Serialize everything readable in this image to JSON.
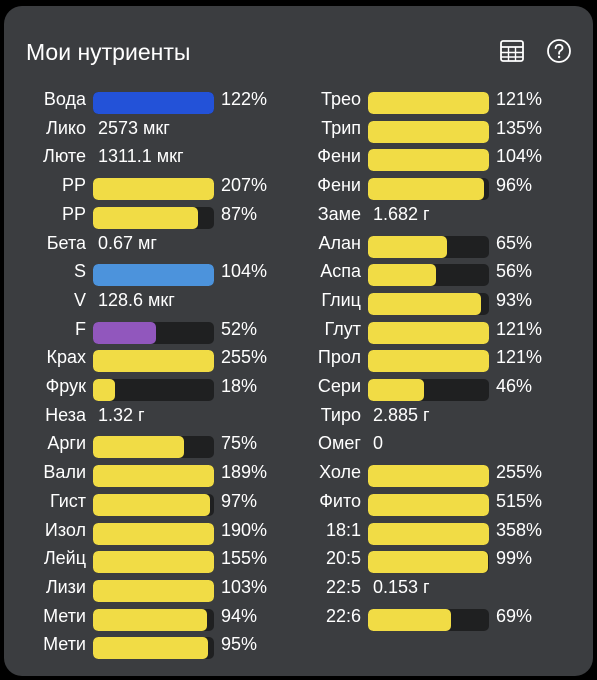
{
  "header": {
    "title": "Мои нутриенты",
    "table_icon": "table-icon",
    "help_icon": "help-circle-icon"
  },
  "colors": {
    "card_bg": "#3b3d40",
    "track": "#1f2021",
    "yellow": "#f1dc45",
    "blue": "#2352d8",
    "light_blue": "#4c93dc",
    "purple": "#9157bd"
  },
  "left": [
    {
      "label": "Вода",
      "kind": "bar",
      "percent": 122,
      "text": "122%",
      "color": "#2352d8"
    },
    {
      "label": "Лико",
      "kind": "value",
      "text": "2573 мкг"
    },
    {
      "label": "Люте",
      "kind": "value",
      "text": "1311.1 мкг"
    },
    {
      "label": "PP",
      "kind": "bar",
      "percent": 207,
      "text": "207%",
      "color": "#f1dc45"
    },
    {
      "label": "PP",
      "kind": "bar",
      "percent": 87,
      "text": "87%",
      "color": "#f1dc45"
    },
    {
      "label": "Бета",
      "kind": "value",
      "text": "0.67 мг"
    },
    {
      "label": "S",
      "kind": "bar",
      "percent": 104,
      "text": "104%",
      "color": "#4c93dc"
    },
    {
      "label": "V",
      "kind": "value",
      "text": "128.6 мкг"
    },
    {
      "label": "F",
      "kind": "bar",
      "percent": 52,
      "text": "52%",
      "color": "#9157bd"
    },
    {
      "label": "Крах",
      "kind": "bar",
      "percent": 255,
      "text": "255%",
      "color": "#f1dc45"
    },
    {
      "label": "Фрук",
      "kind": "bar",
      "percent": 18,
      "text": "18%",
      "color": "#f1dc45"
    },
    {
      "label": "Неза",
      "kind": "value",
      "text": "1.32 г"
    },
    {
      "label": "Арги",
      "kind": "bar",
      "percent": 75,
      "text": "75%",
      "color": "#f1dc45"
    },
    {
      "label": "Вали",
      "kind": "bar",
      "percent": 189,
      "text": "189%",
      "color": "#f1dc45"
    },
    {
      "label": "Гист",
      "kind": "bar",
      "percent": 97,
      "text": "97%",
      "color": "#f1dc45"
    },
    {
      "label": "Изол",
      "kind": "bar",
      "percent": 190,
      "text": "190%",
      "color": "#f1dc45"
    },
    {
      "label": "Лейц",
      "kind": "bar",
      "percent": 155,
      "text": "155%",
      "color": "#f1dc45"
    },
    {
      "label": "Лизи",
      "kind": "bar",
      "percent": 103,
      "text": "103%",
      "color": "#f1dc45"
    },
    {
      "label": "Мети",
      "kind": "bar",
      "percent": 94,
      "text": "94%",
      "color": "#f1dc45"
    },
    {
      "label": "Мети",
      "kind": "bar",
      "percent": 95,
      "text": "95%",
      "color": "#f1dc45"
    }
  ],
  "right": [
    {
      "label": "Трео",
      "kind": "bar",
      "percent": 121,
      "text": "121%",
      "color": "#f1dc45"
    },
    {
      "label": "Трип",
      "kind": "bar",
      "percent": 135,
      "text": "135%",
      "color": "#f1dc45"
    },
    {
      "label": "Фени",
      "kind": "bar",
      "percent": 104,
      "text": "104%",
      "color": "#f1dc45"
    },
    {
      "label": "Фени",
      "kind": "bar",
      "percent": 96,
      "text": "96%",
      "color": "#f1dc45"
    },
    {
      "label": "Заме",
      "kind": "value",
      "text": "1.682 г"
    },
    {
      "label": "Алан",
      "kind": "bar",
      "percent": 65,
      "text": "65%",
      "color": "#f1dc45"
    },
    {
      "label": "Аспа",
      "kind": "bar",
      "percent": 56,
      "text": "56%",
      "color": "#f1dc45"
    },
    {
      "label": "Глиц",
      "kind": "bar",
      "percent": 93,
      "text": "93%",
      "color": "#f1dc45"
    },
    {
      "label": "Глут",
      "kind": "bar",
      "percent": 121,
      "text": "121%",
      "color": "#f1dc45"
    },
    {
      "label": "Прол",
      "kind": "bar",
      "percent": 121,
      "text": "121%",
      "color": "#f1dc45"
    },
    {
      "label": "Сери",
      "kind": "bar",
      "percent": 46,
      "text": "46%",
      "color": "#f1dc45"
    },
    {
      "label": "Тиро",
      "kind": "value",
      "text": "2.885 г"
    },
    {
      "label": "Омег",
      "kind": "value",
      "text": "0"
    },
    {
      "label": "Холе",
      "kind": "bar",
      "percent": 255,
      "text": "255%",
      "color": "#f1dc45"
    },
    {
      "label": "Фито",
      "kind": "bar",
      "percent": 515,
      "text": "515%",
      "color": "#f1dc45"
    },
    {
      "label": "18:1",
      "kind": "bar",
      "percent": 358,
      "text": "358%",
      "color": "#f1dc45"
    },
    {
      "label": "20:5",
      "kind": "bar",
      "percent": 99,
      "text": "99%",
      "color": "#f1dc45"
    },
    {
      "label": "22:5",
      "kind": "value",
      "text": "0.153 г"
    },
    {
      "label": "22:6",
      "kind": "bar",
      "percent": 69,
      "text": "69%",
      "color": "#f1dc45"
    }
  ]
}
